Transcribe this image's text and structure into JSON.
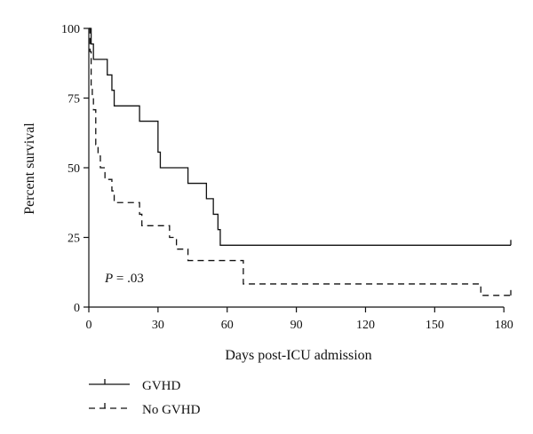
{
  "chart_data": {
    "type": "line",
    "xlabel": "Days post-ICU admission",
    "ylabel": "Percent survival",
    "xlim": [
      0,
      183
    ],
    "ylim": [
      0,
      100
    ],
    "xticks": [
      0,
      30,
      60,
      90,
      120,
      150,
      180
    ],
    "yticks": [
      0,
      25,
      50,
      75,
      100
    ],
    "annotation": {
      "italic": "P",
      "text": " = .03"
    },
    "grid": false,
    "legend_placement": "below",
    "series": [
      {
        "name": "GVHD",
        "style": "solid",
        "color": "#111111",
        "x": [
          0,
          1,
          2,
          4,
          8,
          10,
          11,
          22,
          30,
          31,
          43,
          51,
          54,
          55,
          56,
          57,
          183
        ],
        "y": [
          100,
          94.4,
          88.9,
          88.9,
          83.3,
          77.8,
          72.2,
          66.7,
          55.6,
          50,
          44.4,
          38.9,
          33.3,
          33.3,
          27.8,
          22.2,
          22.2
        ],
        "censored_at": [
          183
        ]
      },
      {
        "name": "No GVHD",
        "style": "dashed",
        "color": "#111111",
        "x": [
          0,
          0.5,
          1,
          1.5,
          2,
          3,
          4,
          5,
          7,
          8,
          10,
          11,
          21,
          22,
          23,
          35,
          38,
          42,
          43,
          67,
          170,
          183
        ],
        "y": [
          100,
          91.7,
          79.2,
          75,
          70.8,
          58.3,
          54.2,
          50,
          45.8,
          45.8,
          41.7,
          37.5,
          37.5,
          33.3,
          29.2,
          25,
          20.8,
          20.8,
          16.7,
          8.3,
          4.2,
          4.2
        ],
        "censored_at": [
          183
        ]
      }
    ]
  }
}
